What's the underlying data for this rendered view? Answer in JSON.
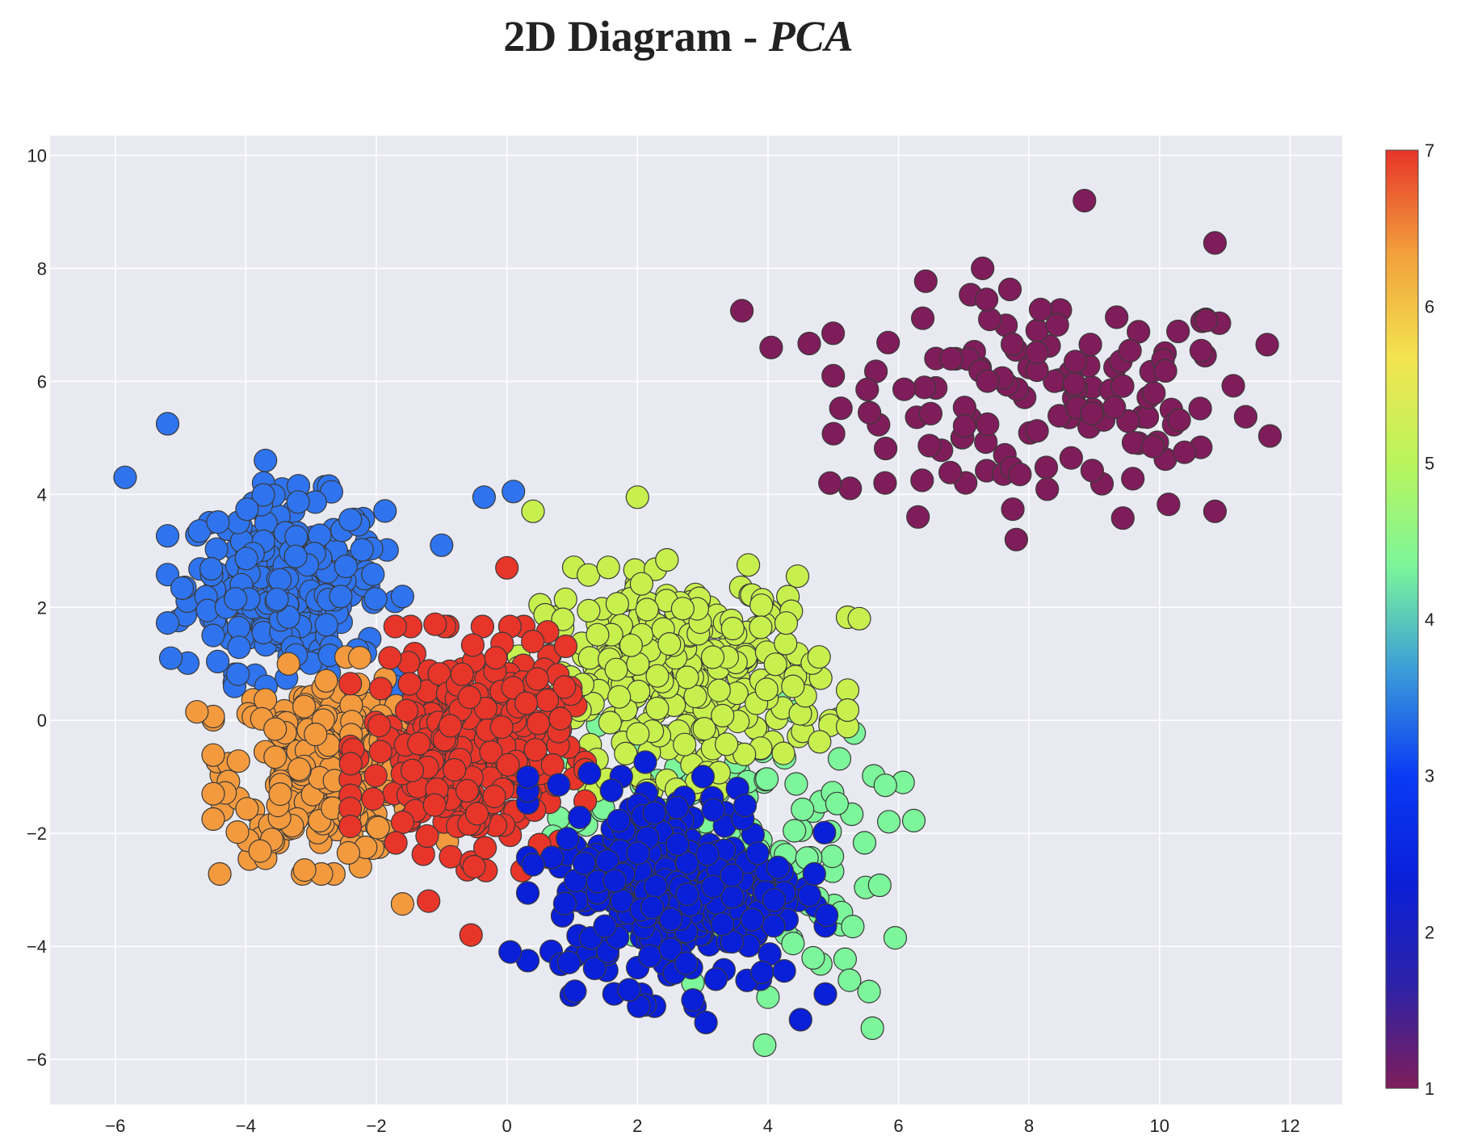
{
  "chart_data": {
    "type": "scatter",
    "title": "2D Diagram - ",
    "title_emphasis": "PCA",
    "xlabel": "",
    "ylabel": "",
    "xlim": [
      -7,
      12.8
    ],
    "ylim": [
      -6.8,
      10.35
    ],
    "x_ticks": [
      -6,
      -4,
      -2,
      0,
      2,
      4,
      6,
      8,
      10,
      12
    ],
    "y_ticks": [
      -6,
      -4,
      -2,
      0,
      2,
      4,
      6,
      8,
      10
    ],
    "grid": true,
    "plot_background": "#e9eaf1",
    "grid_color": "#ffffff",
    "marker_outline": "#3a3a3a",
    "colorscale": "rainbow",
    "colorbar": {
      "min": 1,
      "max": 7,
      "ticks": [
        1,
        2,
        3,
        4,
        5,
        6,
        7
      ]
    },
    "colorscale_stops": [
      "#7f1d5a",
      "#2c22a8",
      "#0a1fd8",
      "#0a3af5",
      "#3b9bd9",
      "#7cf59b",
      "#b9f55c",
      "#f3e450",
      "#f2a13c",
      "#e8352a"
    ],
    "clusters": [
      {
        "label": 1,
        "color": "#7f1d5a",
        "center": [
          8.3,
          5.6
        ],
        "spread": [
          1.6,
          1.0
        ],
        "count": 130,
        "points": [
          [
            8.85,
            9.2
          ],
          [
            10.85,
            8.45
          ],
          [
            3.6,
            7.25
          ],
          [
            11.65,
            6.65
          ],
          [
            7.35,
            7.45
          ],
          [
            6.3,
            3.6
          ],
          [
            4.95,
            4.2
          ],
          [
            10.85,
            3.7
          ],
          [
            4.05,
            6.6
          ],
          [
            5.0,
            6.1
          ]
        ]
      },
      {
        "label": 2,
        "color": "#0a1fd8",
        "center": [
          2.6,
          -2.9
        ],
        "spread": [
          0.95,
          0.9
        ],
        "count": 340,
        "points": [
          [
            3.05,
            -5.35
          ],
          [
            4.5,
            -5.3
          ],
          [
            0.05,
            -4.1
          ],
          [
            4.9,
            -3.45
          ],
          [
            2.85,
            -4.95
          ]
        ]
      },
      {
        "label": 3,
        "color": "#2f74ee",
        "center": [
          -3.4,
          2.4
        ],
        "spread": [
          0.75,
          0.75
        ],
        "count": 300,
        "points": [
          [
            -5.85,
            4.3
          ],
          [
            -5.2,
            5.25
          ],
          [
            -3.7,
            4.6
          ],
          [
            -0.35,
            3.95
          ],
          [
            0.1,
            4.05
          ],
          [
            -1.0,
            3.1
          ],
          [
            -5.15,
            1.1
          ],
          [
            -2.4,
            3.55
          ]
        ]
      },
      {
        "label": 4,
        "color": "#7cf59b",
        "center": [
          3.4,
          -2.2
        ],
        "spread": [
          1.2,
          1.1
        ],
        "count": 120,
        "points": [
          [
            3.95,
            -5.75
          ],
          [
            5.6,
            -5.45
          ],
          [
            4.0,
            -4.9
          ],
          [
            5.55,
            -4.8
          ],
          [
            5.95,
            -3.85
          ],
          [
            5.8,
            -1.15
          ],
          [
            5.25,
            -4.6
          ],
          [
            5.3,
            -3.65
          ]
        ]
      },
      {
        "label": 5,
        "color": "#c7f04e",
        "center": [
          2.7,
          0.8
        ],
        "spread": [
          1.05,
          0.85
        ],
        "count": 340,
        "points": [
          [
            2.0,
            3.95
          ],
          [
            0.4,
            3.7
          ],
          [
            5.4,
            1.8
          ],
          [
            3.7,
            2.75
          ]
        ]
      },
      {
        "label": 6,
        "color": "#f39a3e",
        "center": [
          -2.7,
          -0.8
        ],
        "spread": [
          0.75,
          0.8
        ],
        "count": 320,
        "points": [
          [
            -4.5,
            -1.3
          ],
          [
            -3.1,
            -2.65
          ],
          [
            -1.6,
            -3.25
          ],
          [
            -4.75,
            0.15
          ]
        ]
      },
      {
        "label": 7,
        "color": "#e8352a",
        "center": [
          -0.6,
          -0.5
        ],
        "spread": [
          0.75,
          0.9
        ],
        "count": 360,
        "points": [
          [
            -0.55,
            -3.8
          ],
          [
            0.0,
            2.7
          ],
          [
            -1.1,
            1.7
          ],
          [
            -1.2,
            -3.2
          ],
          [
            0.5,
            -2.2
          ]
        ]
      }
    ]
  }
}
